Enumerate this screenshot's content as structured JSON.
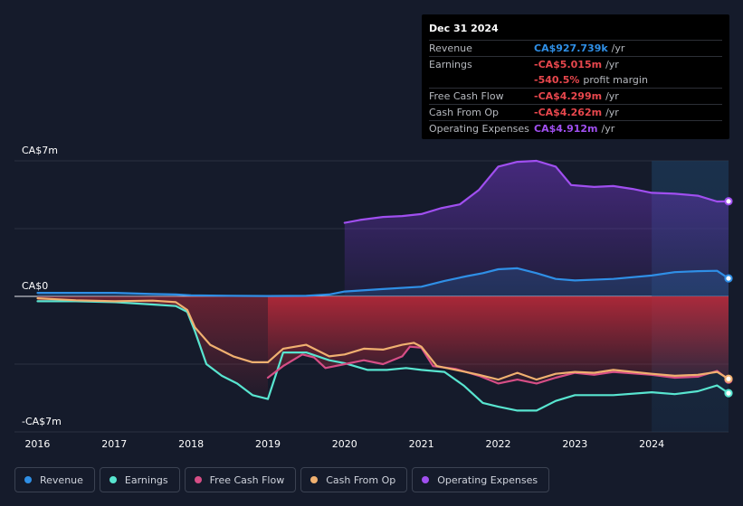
{
  "tooltip": {
    "date": "Dec 31 2024",
    "rows": [
      {
        "label": "Revenue",
        "value": "CA$927.739k",
        "unit": "/yr",
        "color": "#2f8fe6"
      },
      {
        "label": "Earnings",
        "value": "-CA$5.015m",
        "unit": "/yr",
        "color": "#e8474d"
      },
      {
        "label": "",
        "value": "-540.5%",
        "unit": "profit margin",
        "color": "#e8474d"
      },
      {
        "label": "Free Cash Flow",
        "value": "-CA$4.299m",
        "unit": "/yr",
        "color": "#e8474d"
      },
      {
        "label": "Cash From Op",
        "value": "-CA$4.262m",
        "unit": "/yr",
        "color": "#e8474d"
      },
      {
        "label": "Operating Expenses",
        "value": "CA$4.912m",
        "unit": "/yr",
        "color": "#a04ff0"
      }
    ]
  },
  "chart_data": {
    "type": "area",
    "title": "",
    "xlabel": "",
    "ylabel": "",
    "y_unit": "CA$m",
    "ylim": [
      -7,
      7
    ],
    "xlim": [
      2015.7,
      2025.0
    ],
    "y_tick_labels": [
      {
        "value": 7,
        "label": "CA$7m"
      },
      {
        "value": 0,
        "label": "CA$0"
      },
      {
        "value": -7,
        "label": "-CA$7m"
      }
    ],
    "x_tick_labels": [
      "2016",
      "2017",
      "2018",
      "2019",
      "2020",
      "2021",
      "2022",
      "2023",
      "2024"
    ],
    "x_ticks": [
      2016,
      2017,
      2018,
      2019,
      2020,
      2021,
      2022,
      2023,
      2024
    ],
    "forecast_start": 2024.0,
    "legend_position": "bottom",
    "series": [
      {
        "name": "Revenue",
        "color": "#2f8fe6",
        "points": [
          [
            2016.0,
            0.18
          ],
          [
            2016.5,
            0.18
          ],
          [
            2017.0,
            0.18
          ],
          [
            2017.5,
            0.12
          ],
          [
            2017.8,
            0.1
          ],
          [
            2018.0,
            0.05
          ],
          [
            2018.5,
            0.03
          ],
          [
            2019.0,
            0.02
          ],
          [
            2019.5,
            0.03
          ],
          [
            2019.8,
            0.1
          ],
          [
            2020.0,
            0.25
          ],
          [
            2020.5,
            0.38
          ],
          [
            2021.0,
            0.5
          ],
          [
            2021.3,
            0.8
          ],
          [
            2021.6,
            1.05
          ],
          [
            2021.8,
            1.2
          ],
          [
            2022.0,
            1.4
          ],
          [
            2022.25,
            1.45
          ],
          [
            2022.5,
            1.2
          ],
          [
            2022.75,
            0.9
          ],
          [
            2023.0,
            0.82
          ],
          [
            2023.5,
            0.9
          ],
          [
            2024.0,
            1.08
          ],
          [
            2024.3,
            1.25
          ],
          [
            2024.6,
            1.3
          ],
          [
            2024.85,
            1.32
          ],
          [
            2025.0,
            0.93
          ]
        ]
      },
      {
        "name": "Earnings",
        "color": "#58e5d0",
        "points": [
          [
            2016.0,
            -0.25
          ],
          [
            2016.5,
            -0.25
          ],
          [
            2017.0,
            -0.3
          ],
          [
            2017.5,
            -0.42
          ],
          [
            2017.8,
            -0.5
          ],
          [
            2017.95,
            -0.8
          ],
          [
            2018.05,
            -1.8
          ],
          [
            2018.2,
            -3.5
          ],
          [
            2018.4,
            -4.1
          ],
          [
            2018.6,
            -4.5
          ],
          [
            2018.8,
            -5.1
          ],
          [
            2019.0,
            -5.3
          ],
          [
            2019.2,
            -2.9
          ],
          [
            2019.5,
            -2.9
          ],
          [
            2019.8,
            -3.3
          ],
          [
            2020.0,
            -3.45
          ],
          [
            2020.3,
            -3.8
          ],
          [
            2020.55,
            -3.8
          ],
          [
            2020.8,
            -3.7
          ],
          [
            2021.0,
            -3.8
          ],
          [
            2021.3,
            -3.9
          ],
          [
            2021.55,
            -4.6
          ],
          [
            2021.8,
            -5.5
          ],
          [
            2022.0,
            -5.7
          ],
          [
            2022.25,
            -5.9
          ],
          [
            2022.5,
            -5.9
          ],
          [
            2022.75,
            -5.4
          ],
          [
            2023.0,
            -5.1
          ],
          [
            2023.5,
            -5.1
          ],
          [
            2024.0,
            -4.95
          ],
          [
            2024.3,
            -5.05
          ],
          [
            2024.6,
            -4.9
          ],
          [
            2024.85,
            -4.6
          ],
          [
            2025.0,
            -5.0
          ]
        ]
      },
      {
        "name": "Free Cash Flow",
        "color": "#d64e86",
        "points": [
          [
            2019.0,
            -4.2
          ],
          [
            2019.2,
            -3.6
          ],
          [
            2019.45,
            -3.0
          ],
          [
            2019.6,
            -3.15
          ],
          [
            2019.75,
            -3.7
          ],
          [
            2020.0,
            -3.5
          ],
          [
            2020.25,
            -3.3
          ],
          [
            2020.5,
            -3.5
          ],
          [
            2020.75,
            -3.1
          ],
          [
            2020.85,
            -2.6
          ],
          [
            2021.0,
            -2.65
          ],
          [
            2021.15,
            -3.6
          ],
          [
            2021.45,
            -3.75
          ],
          [
            2021.75,
            -4.1
          ],
          [
            2022.0,
            -4.5
          ],
          [
            2022.25,
            -4.3
          ],
          [
            2022.5,
            -4.5
          ],
          [
            2022.75,
            -4.2
          ],
          [
            2023.0,
            -3.95
          ],
          [
            2023.25,
            -4.05
          ],
          [
            2023.5,
            -3.9
          ],
          [
            2024.0,
            -4.05
          ],
          [
            2024.3,
            -4.2
          ],
          [
            2024.6,
            -4.15
          ],
          [
            2024.85,
            -3.85
          ],
          [
            2025.0,
            -4.3
          ]
        ]
      },
      {
        "name": "Cash From Op",
        "color": "#f0b070",
        "points": [
          [
            2016.0,
            -0.1
          ],
          [
            2016.5,
            -0.2
          ],
          [
            2017.0,
            -0.25
          ],
          [
            2017.5,
            -0.22
          ],
          [
            2017.8,
            -0.3
          ],
          [
            2017.95,
            -0.7
          ],
          [
            2018.05,
            -1.6
          ],
          [
            2018.25,
            -2.5
          ],
          [
            2018.55,
            -3.1
          ],
          [
            2018.8,
            -3.4
          ],
          [
            2019.0,
            -3.4
          ],
          [
            2019.2,
            -2.7
          ],
          [
            2019.5,
            -2.5
          ],
          [
            2019.8,
            -3.1
          ],
          [
            2020.0,
            -3.0
          ],
          [
            2020.25,
            -2.7
          ],
          [
            2020.5,
            -2.75
          ],
          [
            2020.75,
            -2.5
          ],
          [
            2020.9,
            -2.4
          ],
          [
            2021.0,
            -2.6
          ],
          [
            2021.2,
            -3.6
          ],
          [
            2021.45,
            -3.8
          ],
          [
            2021.75,
            -4.05
          ],
          [
            2022.0,
            -4.3
          ],
          [
            2022.25,
            -3.95
          ],
          [
            2022.5,
            -4.3
          ],
          [
            2022.75,
            -4.0
          ],
          [
            2023.0,
            -3.9
          ],
          [
            2023.25,
            -3.95
          ],
          [
            2023.5,
            -3.8
          ],
          [
            2024.0,
            -4.0
          ],
          [
            2024.3,
            -4.1
          ],
          [
            2024.6,
            -4.05
          ],
          [
            2024.85,
            -3.9
          ],
          [
            2025.0,
            -4.26
          ]
        ]
      },
      {
        "name": "Operating Expenses",
        "color": "#a04ff0",
        "points": [
          [
            2020.0,
            3.8
          ],
          [
            2020.2,
            3.95
          ],
          [
            2020.5,
            4.1
          ],
          [
            2020.75,
            4.15
          ],
          [
            2021.0,
            4.25
          ],
          [
            2021.25,
            4.55
          ],
          [
            2021.5,
            4.75
          ],
          [
            2021.75,
            5.5
          ],
          [
            2022.0,
            6.7
          ],
          [
            2022.25,
            6.95
          ],
          [
            2022.5,
            7.0
          ],
          [
            2022.75,
            6.7
          ],
          [
            2022.95,
            5.75
          ],
          [
            2023.25,
            5.65
          ],
          [
            2023.5,
            5.7
          ],
          [
            2023.75,
            5.55
          ],
          [
            2024.0,
            5.35
          ],
          [
            2024.3,
            5.3
          ],
          [
            2024.6,
            5.2
          ],
          [
            2024.85,
            4.9
          ],
          [
            2025.0,
            4.91
          ]
        ]
      }
    ]
  }
}
